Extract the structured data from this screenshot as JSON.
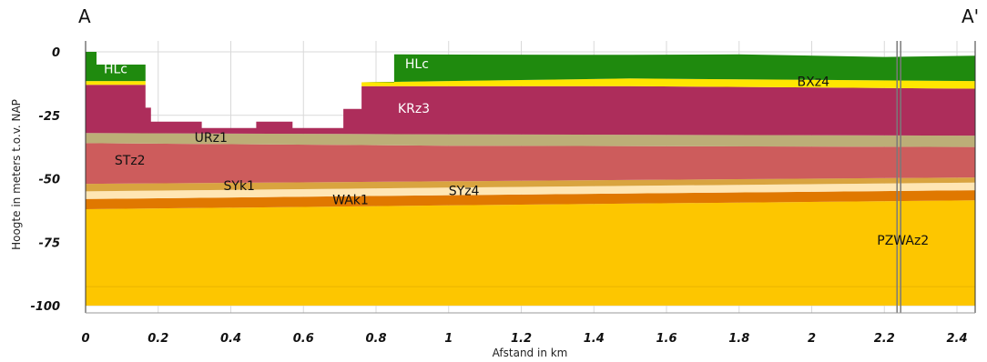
{
  "section": {
    "start_label": "A",
    "end_label": "A'",
    "xlabel": "Afstand in km",
    "ylabel": "Hoogte in meters t.o.v. NAP",
    "xlim": [
      0,
      2.45
    ],
    "ylim": [
      -100,
      0
    ],
    "x_ticks": [
      {
        "value": 0,
        "label": "0"
      },
      {
        "value": 0.2,
        "label": "0.2"
      },
      {
        "value": 0.4,
        "label": "0.4"
      },
      {
        "value": 0.6,
        "label": "0.6"
      },
      {
        "value": 0.8,
        "label": "0.8"
      },
      {
        "value": 1.0,
        "label": "1"
      },
      {
        "value": 1.2,
        "label": "1.2"
      },
      {
        "value": 1.4,
        "label": "1.4"
      },
      {
        "value": 1.6,
        "label": "1.6"
      },
      {
        "value": 1.8,
        "label": "1.8"
      },
      {
        "value": 2.0,
        "label": "2"
      },
      {
        "value": 2.2,
        "label": "2.2"
      },
      {
        "value": 2.4,
        "label": "2.4"
      }
    ],
    "y_ticks": [
      {
        "value": 0,
        "label": "0"
      },
      {
        "value": -25,
        "label": "-25"
      },
      {
        "value": -50,
        "label": "-50"
      },
      {
        "value": -75,
        "label": "-75"
      },
      {
        "value": -100,
        "label": "-100"
      }
    ],
    "boreholes": [
      2.235,
      2.245
    ],
    "layers": [
      {
        "name": "PZWAz2",
        "color": "#fdc600",
        "label": {
          "text": "PZWAz2",
          "x": 2.18,
          "y": -76
        },
        "top": [
          [
            0,
            -62
          ],
          [
            1,
            -60.5
          ],
          [
            2.45,
            -58.5
          ]
        ],
        "bottom": [
          [
            0,
            -100
          ],
          [
            2.45,
            -100
          ]
        ]
      },
      {
        "name": "WAk1",
        "color": "#e07800",
        "label": {
          "text": "WAk1",
          "x": 0.68,
          "y": -60
        },
        "top": [
          [
            0,
            -58
          ],
          [
            1,
            -56.5
          ],
          [
            2.45,
            -54.5
          ]
        ],
        "bottom": [
          [
            0,
            -62
          ],
          [
            1,
            -60.5
          ],
          [
            2.45,
            -58.5
          ]
        ]
      },
      {
        "name": "SYz4",
        "color": "#ffe6b4",
        "label": {
          "text": "SYz4",
          "x": 1.0,
          "y": -56.5
        },
        "top": [
          [
            0,
            -55
          ],
          [
            1,
            -53.5
          ],
          [
            2.45,
            -51.5
          ]
        ],
        "bottom": [
          [
            0,
            -58
          ],
          [
            1,
            -56.5
          ],
          [
            2.45,
            -54.5
          ]
        ]
      },
      {
        "name": "SYk1",
        "color": "#d9a43f",
        "label": {
          "text": "SYk1",
          "x": 0.38,
          "y": -54.5
        },
        "top": [
          [
            0,
            -52
          ],
          [
            1,
            -51
          ],
          [
            2.45,
            -49.5
          ]
        ],
        "bottom": [
          [
            0,
            -55
          ],
          [
            1,
            -53.5
          ],
          [
            2.45,
            -51.5
          ]
        ]
      },
      {
        "name": "STz2",
        "color": "#cd5c5c",
        "label": {
          "text": "STz2",
          "x": 0.08,
          "y": -44.5
        },
        "top": [
          [
            0,
            -36
          ],
          [
            1,
            -37
          ],
          [
            2.45,
            -37.5
          ]
        ],
        "bottom": [
          [
            0,
            -52
          ],
          [
            1,
            -51
          ],
          [
            2.45,
            -49.5
          ]
        ]
      },
      {
        "name": "URz1",
        "color": "#bcae77",
        "label": {
          "text": "URz1",
          "x": 0.3,
          "y": -35.5
        },
        "top": [
          [
            0,
            -32
          ],
          [
            1,
            -32.5
          ],
          [
            2.45,
            -33
          ]
        ],
        "bottom": [
          [
            0,
            -36
          ],
          [
            1,
            -37
          ],
          [
            2.45,
            -37.5
          ]
        ]
      },
      {
        "name": "KRz3",
        "color": "#ad2d5b",
        "label": {
          "text": "KRz3",
          "x": 0.86,
          "y": -24
        },
        "top": [
          [
            0,
            -13
          ],
          [
            0.165,
            -13
          ],
          [
            0.165,
            -22
          ],
          [
            0.18,
            -22
          ],
          [
            0.18,
            -27.5
          ],
          [
            0.32,
            -27.5
          ],
          [
            0.32,
            -30
          ],
          [
            0.47,
            -30
          ],
          [
            0.47,
            -27.5
          ],
          [
            0.57,
            -27.5
          ],
          [
            0.57,
            -30
          ],
          [
            0.71,
            -30
          ],
          [
            0.71,
            -22.5
          ],
          [
            0.76,
            -22.5
          ],
          [
            0.76,
            -13.5
          ],
          [
            1.5,
            -13.5
          ],
          [
            2.45,
            -14.5
          ]
        ],
        "bottom": [
          [
            0,
            -32
          ],
          [
            1,
            -32.5
          ],
          [
            2.45,
            -33
          ]
        ]
      },
      {
        "name": "BXz4",
        "color": "#ffe600",
        "label": {
          "text": "BXz4",
          "x": 1.96,
          "y": -13.5
        },
        "top": [
          [
            0,
            -11.5
          ],
          [
            0.165,
            -11.5
          ],
          [
            0.165,
            -13
          ],
          [
            0,
            -13
          ]
        ],
        "bottom": [
          [
            0.76,
            -12
          ],
          [
            1.5,
            -10.5
          ],
          [
            2.45,
            -11.5
          ],
          [
            2.45,
            -14.5
          ],
          [
            1.5,
            -13.5
          ],
          [
            0.76,
            -13.5
          ]
        ]
      },
      {
        "name": "HLc",
        "color": "#1f8a0e",
        "label": {
          "text": "HLc",
          "x": 0.05,
          "y": -8.5
        },
        "top": [
          [
            0,
            0
          ],
          [
            0.03,
            0
          ],
          [
            0.03,
            -5
          ],
          [
            0.165,
            -5
          ],
          [
            0.165,
            -11.5
          ],
          [
            0,
            -11.5
          ]
        ],
        "bottom": []
      },
      {
        "name": "HLc-east",
        "color": "#1f8a0e",
        "label": {
          "text": "HLc",
          "x": 0.88,
          "y": -6.5
        },
        "top": [
          [
            0.85,
            -1
          ],
          [
            1.5,
            -1.2
          ],
          [
            1.8,
            -1
          ],
          [
            2.2,
            -2
          ],
          [
            2.45,
            -1.5
          ],
          [
            2.45,
            -11.5
          ],
          [
            1.5,
            -10.5
          ],
          [
            0.76,
            -12
          ],
          [
            0.85,
            -12
          ]
        ],
        "bottom": []
      }
    ]
  }
}
